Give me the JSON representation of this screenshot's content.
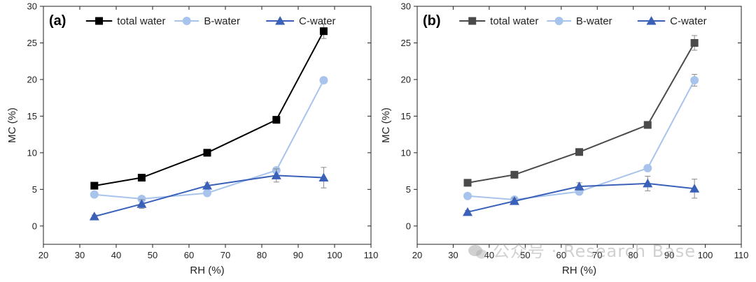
{
  "colors": {
    "total_a": "#000000",
    "total_b": "#4a4a4a",
    "bwater": "#a8c4ec",
    "cwater": "#3a60b8",
    "errorbar": "#888888"
  },
  "watermark": {
    "text": "公众号 · Research Base",
    "icon": "wechat-icon"
  },
  "chart_data": [
    {
      "type": "line",
      "panel_label": "(a)",
      "xlabel": "RH (%)",
      "ylabel": "MC (%)",
      "xlim": [
        20,
        110
      ],
      "ylim": [
        -2.5,
        30
      ],
      "xticks": [
        20,
        30,
        40,
        50,
        60,
        70,
        80,
        90,
        100,
        110
      ],
      "yticks": [
        0,
        5,
        10,
        15,
        20,
        25,
        30
      ],
      "legend_position": "top",
      "series": [
        {
          "name": "total water",
          "marker": "square",
          "color": "#000000",
          "x": [
            34,
            47,
            65,
            84,
            97
          ],
          "y": [
            5.5,
            6.6,
            10.0,
            14.5,
            26.6
          ],
          "err": [
            0.2,
            0.3,
            0.3,
            0.4,
            1.0
          ]
        },
        {
          "name": "B-water",
          "marker": "circle",
          "color": "#a8c4ec",
          "x": [
            34,
            47,
            65,
            84,
            97
          ],
          "y": [
            4.3,
            3.7,
            4.5,
            7.6,
            19.9
          ],
          "err": [
            0.2,
            0.2,
            0.3,
            0.4,
            0.4
          ]
        },
        {
          "name": "C-water",
          "marker": "triangle",
          "color": "#3a60b8",
          "x": [
            34,
            47,
            65,
            84,
            97
          ],
          "y": [
            1.3,
            3.0,
            5.5,
            6.9,
            6.6
          ],
          "err": [
            0.2,
            0.6,
            0.4,
            0.9,
            1.4
          ]
        }
      ]
    },
    {
      "type": "line",
      "panel_label": "(b)",
      "xlabel": "RH (%)",
      "ylabel": "MC (%)",
      "xlim": [
        20,
        110
      ],
      "ylim": [
        -2.5,
        30
      ],
      "xticks": [
        20,
        30,
        40,
        50,
        60,
        70,
        80,
        90,
        100,
        110
      ],
      "yticks": [
        0,
        5,
        10,
        15,
        20,
        25,
        30
      ],
      "legend_position": "top",
      "series": [
        {
          "name": "total water",
          "marker": "square",
          "color": "#4a4a4a",
          "x": [
            34,
            47,
            65,
            84,
            97
          ],
          "y": [
            5.9,
            7.0,
            10.1,
            13.8,
            25.0
          ],
          "err": [
            0.2,
            0.3,
            0.3,
            0.4,
            1.0
          ]
        },
        {
          "name": "B-water",
          "marker": "circle",
          "color": "#a8c4ec",
          "x": [
            34,
            47,
            65,
            84,
            97
          ],
          "y": [
            4.1,
            3.6,
            4.7,
            7.9,
            19.9
          ],
          "err": [
            0.2,
            0.2,
            0.3,
            0.4,
            0.8
          ]
        },
        {
          "name": "C-water",
          "marker": "triangle",
          "color": "#3a60b8",
          "x": [
            34,
            47,
            65,
            84,
            97
          ],
          "y": [
            1.9,
            3.4,
            5.4,
            5.8,
            5.1
          ],
          "err": [
            0.2,
            0.4,
            0.5,
            1.0,
            1.3
          ]
        }
      ]
    }
  ]
}
